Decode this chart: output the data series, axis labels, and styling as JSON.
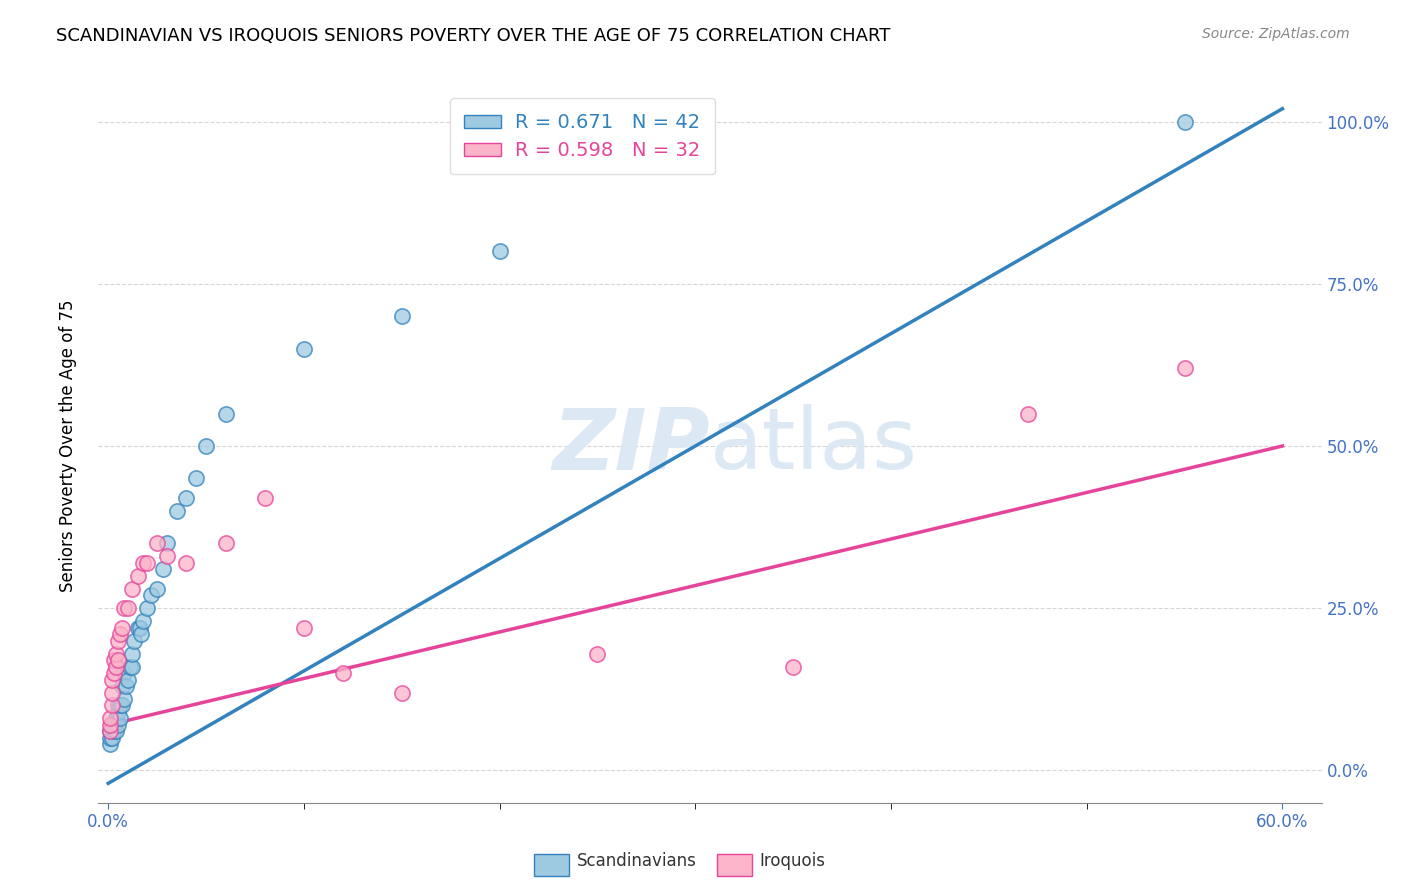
{
  "title": "SCANDINAVIAN VS IROQUOIS SENIORS POVERTY OVER THE AGE OF 75 CORRELATION CHART",
  "source": "Source: ZipAtlas.com",
  "ylabel": "Seniors Poverty Over the Age of 75",
  "xlabel_ticks_show": [
    "0.0%",
    "60.0%"
  ],
  "xlabel_ticks_pos": [
    0.0,
    0.6
  ],
  "ylabel_ticks": [
    "0.0%",
    "25.0%",
    "50.0%",
    "75.0%",
    "100.0%"
  ],
  "ylabel_vals": [
    0.0,
    0.25,
    0.5,
    0.75,
    1.0
  ],
  "xlim": [
    -0.005,
    0.62
  ],
  "ylim": [
    -0.05,
    1.05
  ],
  "scandinavian_color": "#9ecae1",
  "iroquois_color": "#fbb4c9",
  "trendline_scand_color": "#3182bd",
  "trendline_iroq_color": "#e6449a",
  "watermark_color": "#dce9f5",
  "scandinavian_x": [
    0.001,
    0.001,
    0.001,
    0.002,
    0.002,
    0.003,
    0.003,
    0.004,
    0.004,
    0.005,
    0.005,
    0.005,
    0.006,
    0.006,
    0.007,
    0.007,
    0.008,
    0.008,
    0.009,
    0.01,
    0.011,
    0.012,
    0.012,
    0.013,
    0.015,
    0.016,
    0.017,
    0.018,
    0.02,
    0.022,
    0.025,
    0.028,
    0.03,
    0.035,
    0.04,
    0.045,
    0.05,
    0.06,
    0.1,
    0.15,
    0.2,
    0.55
  ],
  "scandinavian_y": [
    0.04,
    0.05,
    0.06,
    0.05,
    0.07,
    0.06,
    0.07,
    0.06,
    0.08,
    0.07,
    0.09,
    0.1,
    0.08,
    0.1,
    0.1,
    0.13,
    0.11,
    0.15,
    0.13,
    0.14,
    0.16,
    0.16,
    0.18,
    0.2,
    0.22,
    0.22,
    0.21,
    0.23,
    0.25,
    0.27,
    0.28,
    0.31,
    0.35,
    0.4,
    0.42,
    0.45,
    0.5,
    0.55,
    0.65,
    0.7,
    0.8,
    1.0
  ],
  "iroquois_x": [
    0.001,
    0.001,
    0.001,
    0.002,
    0.002,
    0.002,
    0.003,
    0.003,
    0.004,
    0.004,
    0.005,
    0.005,
    0.006,
    0.007,
    0.008,
    0.01,
    0.012,
    0.015,
    0.018,
    0.02,
    0.025,
    0.03,
    0.04,
    0.06,
    0.08,
    0.1,
    0.12,
    0.15,
    0.25,
    0.35,
    0.47,
    0.55
  ],
  "iroquois_y": [
    0.06,
    0.07,
    0.08,
    0.1,
    0.12,
    0.14,
    0.15,
    0.17,
    0.16,
    0.18,
    0.17,
    0.2,
    0.21,
    0.22,
    0.25,
    0.25,
    0.28,
    0.3,
    0.32,
    0.32,
    0.35,
    0.33,
    0.32,
    0.35,
    0.42,
    0.22,
    0.15,
    0.12,
    0.18,
    0.16,
    0.55,
    0.62
  ],
  "scand_trendline_x": [
    0.0,
    0.6
  ],
  "scand_trendline_y": [
    -0.02,
    1.02
  ],
  "iroq_trendline_x": [
    0.0,
    0.6
  ],
  "iroq_trendline_y": [
    0.07,
    0.5
  ]
}
